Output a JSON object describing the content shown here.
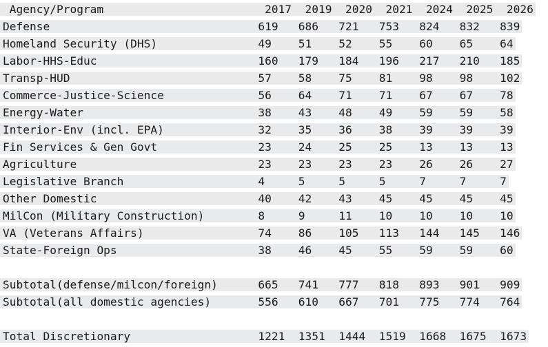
{
  "colors": {
    "row_band": "#e9eaec",
    "text": "#1b1b1b",
    "background": "#ffffff"
  },
  "chart_data": {
    "type": "table",
    "header": {
      "label": "Agency/Program",
      "years": [
        "2017",
        "2019",
        "2020",
        "2021",
        "2024",
        "2025",
        "2026"
      ]
    },
    "rows": [
      {
        "label": "Defense",
        "values": [
          619,
          686,
          721,
          753,
          824,
          832,
          839
        ]
      },
      {
        "label": "Homeland Security (DHS)",
        "values": [
          49,
          51,
          52,
          55,
          60,
          65,
          64
        ]
      },
      {
        "label": "Labor-HHS-Educ",
        "values": [
          160,
          179,
          184,
          196,
          217,
          210,
          185
        ]
      },
      {
        "label": "Transp-HUD",
        "values": [
          57,
          58,
          75,
          81,
          98,
          98,
          102
        ]
      },
      {
        "label": "Commerce-Justice-Science",
        "values": [
          56,
          64,
          71,
          71,
          67,
          67,
          78
        ]
      },
      {
        "label": "Energy-Water",
        "values": [
          38,
          43,
          48,
          49,
          59,
          59,
          58
        ]
      },
      {
        "label": "Interior-Env (incl. EPA)",
        "values": [
          32,
          35,
          36,
          38,
          39,
          39,
          39
        ]
      },
      {
        "label": "Fin Services & Gen Govt",
        "values": [
          23,
          24,
          25,
          25,
          13,
          13,
          13
        ]
      },
      {
        "label": "Agriculture",
        "values": [
          23,
          23,
          23,
          23,
          26,
          26,
          27
        ]
      },
      {
        "label": "Legislative Branch",
        "values": [
          4,
          5,
          5,
          5,
          7,
          7,
          7
        ]
      },
      {
        "label": "Other Domestic",
        "values": [
          40,
          42,
          43,
          45,
          45,
          45,
          45
        ]
      },
      {
        "label": "MilCon (Military Construction)",
        "values": [
          8,
          9,
          11,
          10,
          10,
          10,
          10
        ]
      },
      {
        "label": "VA (Veterans Affairs)",
        "values": [
          74,
          86,
          105,
          113,
          144,
          145,
          146
        ]
      },
      {
        "label": "State-Foreign Ops",
        "values": [
          38,
          46,
          45,
          55,
          59,
          59,
          60
        ]
      },
      {
        "blank": true,
        "label": "",
        "values": []
      },
      {
        "label": "Subtotal(defense/milcon/foreign)",
        "values": [
          665,
          741,
          777,
          818,
          893,
          901,
          909
        ]
      },
      {
        "label": "Subtotal(all domestic agencies)",
        "values": [
          556,
          610,
          667,
          701,
          775,
          774,
          764
        ]
      },
      {
        "blank": true,
        "label": "",
        "values": []
      },
      {
        "label": "Total Discretionary",
        "values": [
          1221,
          1351,
          1444,
          1519,
          1668,
          1675,
          1673
        ]
      }
    ]
  }
}
